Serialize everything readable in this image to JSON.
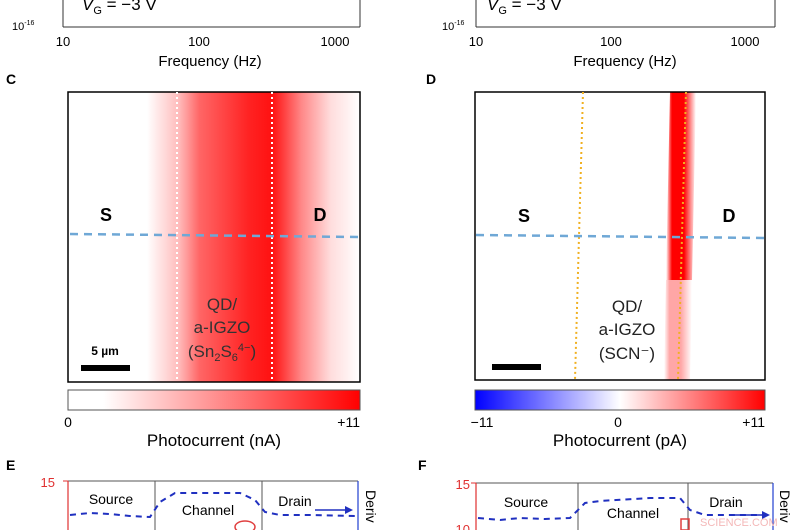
{
  "panels": {
    "A": {
      "vg_label": "V",
      "vg_sub": "G",
      "vg_value": " = −3 V",
      "y_min_label": "10",
      "y_min_exp": "-16",
      "x_ticks": [
        "10",
        "100",
        "1000"
      ],
      "xlabel": "Frequency (Hz)",
      "x_scale": "log"
    },
    "B": {
      "vg_label": "V",
      "vg_sub": "G",
      "vg_value": " = −3 V",
      "y_min_label": "10",
      "y_min_exp": "-16",
      "x_ticks": [
        "10",
        "100",
        "1000"
      ],
      "xlabel": "Frequency (Hz)",
      "x_scale": "log"
    },
    "C": {
      "letter": "C",
      "source": "S",
      "drain": "D",
      "material_line1": "QD/",
      "material_line2": "a-IGZO",
      "material_line3_pre": "(Sn",
      "material_sub1": "2",
      "material_mid": "S",
      "material_sub2": "6",
      "material_sup": "4−",
      "material_post": ")",
      "scalebar": "5 µm",
      "colorbar_min": "0",
      "colorbar_max": "+11",
      "colorbar_label": "Photocurrent (nA)",
      "colormap": [
        "#ffffff",
        "#ff0000"
      ]
    },
    "D": {
      "letter": "D",
      "source": "S",
      "drain": "D",
      "material_line1": "QD/",
      "material_line2": "a-IGZO",
      "material_line3": "(SCN⁻)",
      "colorbar_min": "−11",
      "colorbar_mid": "0",
      "colorbar_max": "+11",
      "colorbar_label": "Photocurrent (pA)",
      "colormap": [
        "#0000ff",
        "#ffffff",
        "#ff0000"
      ]
    },
    "E": {
      "letter": "E",
      "y_tick": "15",
      "regions": [
        "Source",
        "Channel",
        "Drain"
      ],
      "right_axis_label": "Deriv"
    },
    "F": {
      "letter": "F",
      "y_ticks": [
        "15",
        "10"
      ],
      "regions": [
        "Source",
        "Channel",
        "Drain"
      ],
      "right_axis_label": "Deriv"
    }
  },
  "watermark": "SCIENCE.COM",
  "colors": {
    "dashed_line": "#6fa8d6",
    "left_axis": "#e03030",
    "right_axis": "#2040d0",
    "dotted_yellow": "#f0b020"
  }
}
